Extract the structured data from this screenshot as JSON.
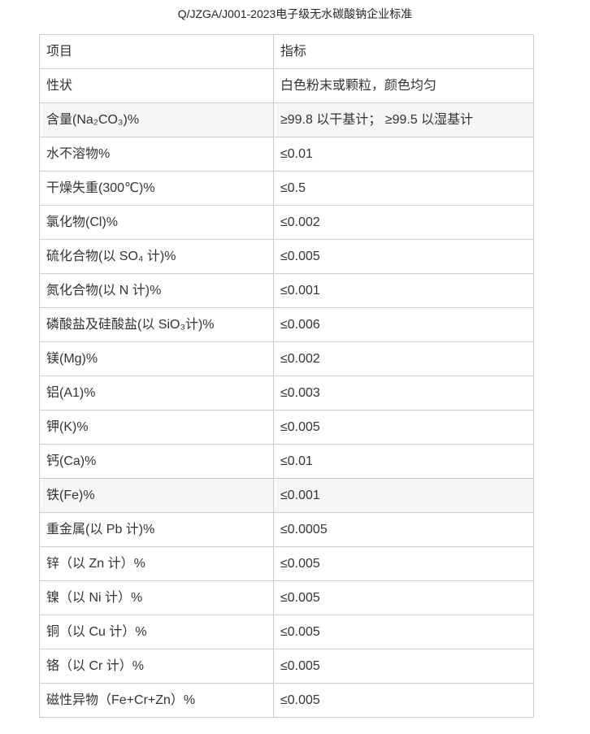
{
  "page": {
    "title": "Q/JZGA/J001-2023电子级无水碳酸钠企业标准"
  },
  "colors": {
    "table_border": "#cccccc",
    "shaded_row_background": "#f6f6f6",
    "text": "#333333"
  },
  "table": {
    "headers": [
      "项目",
      "指标"
    ],
    "rows": [
      {
        "item": "性状",
        "value": "白色粉末或颗粒，颜色均匀",
        "shaded": false
      },
      {
        "item": "含量(Na₂CO₃)%",
        "value": "≥99.8 以干基计； ≥99.5 以湿基计",
        "shaded": true
      },
      {
        "item": "水不溶物%",
        "value": "≤0.01",
        "shaded": false
      },
      {
        "item": "干燥失重(300℃)%",
        "value": "≤0.5",
        "shaded": false
      },
      {
        "item": "氯化物(Cl)%",
        "value": "≤0.002",
        "shaded": false
      },
      {
        "item": "硫化合物(以 SO₄ 计)%",
        "value": "≤0.005",
        "shaded": false
      },
      {
        "item": "氮化合物(以 N 计)%",
        "value": "≤0.001",
        "shaded": false
      },
      {
        "item": "磷酸盐及硅酸盐(以 SiO₃计)%",
        "value": "≤0.006",
        "shaded": false
      },
      {
        "item": "镁(Mg)%",
        "value": "≤0.002",
        "shaded": false
      },
      {
        "item": "铝(A1)%",
        "value": "≤0.003",
        "shaded": false
      },
      {
        "item": "钾(K)%",
        "value": "≤0.005",
        "shaded": false
      },
      {
        "item": "钙(Ca)%",
        "value": "≤0.01",
        "shaded": false
      },
      {
        "item": "铁(Fe)%",
        "value": "≤0.001",
        "shaded": true
      },
      {
        "item": "重金属(以 Pb 计)%",
        "value": "≤0.0005",
        "shaded": false
      },
      {
        "item": "锌（以 Zn 计）%",
        "value": "≤0.005",
        "shaded": false
      },
      {
        "item": "镍（以 Ni 计）%",
        "value": "≤0.005",
        "shaded": false
      },
      {
        "item": "铜（以 Cu 计）%",
        "value": "≤0.005",
        "shaded": false
      },
      {
        "item": "铬（以 Cr 计）%",
        "value": "≤0.005",
        "shaded": false
      },
      {
        "item": "磁性异物（Fe+Cr+Zn）%",
        "value": "≤0.005",
        "shaded": false
      }
    ]
  }
}
